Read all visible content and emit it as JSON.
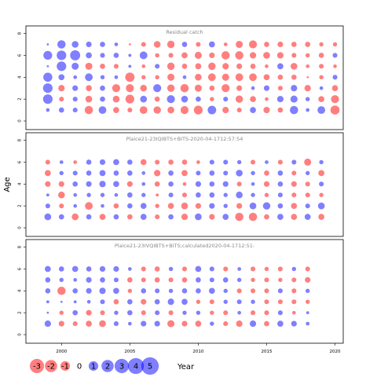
{
  "colors": {
    "negative": "#ff0000",
    "positive": "#0000ff",
    "frame": "#000000",
    "title": "#888888"
  },
  "chart_data": {
    "type": "scatter",
    "ylabel": "Age",
    "xlabel": "",
    "legend_title": "Year",
    "x_ticks": [
      2000,
      2005,
      2010,
      2015,
      2020
    ],
    "y_ticks": [
      0,
      2,
      4,
      6,
      8
    ],
    "xlim": [
      1997.4,
      2020.6
    ],
    "ylim": [
      -0.5,
      8.4
    ],
    "legend": {
      "values": [
        -3,
        -2,
        -1,
        0,
        1,
        2,
        3,
        4,
        5
      ],
      "labels": [
        "-3",
        "-2",
        "-1",
        "0",
        "1",
        "2",
        "3",
        "4",
        "5"
      ]
    },
    "panels": [
      {
        "title": "Residual catch",
        "years_start": 1999,
        "ages": [
          1,
          2,
          3,
          4,
          5,
          6,
          7
        ],
        "residuals": [
          [
            0.3,
            0.6,
            0.5,
            -1.5,
            1.3,
            -0.8,
            -0.5,
            -1.3,
            -1.2,
            -1.0,
            -1.4,
            -1.7,
            1.6,
            -0.9,
            -0.5,
            0.8,
            -0.9,
            -0.6,
            1.5,
            0.3,
            1.3,
            -1.8
          ],
          [
            2.0,
            -0.5,
            0.5,
            -1.0,
            0.6,
            -1.0,
            -1.7,
            1.0,
            -0.6,
            1.4,
            1.0,
            0.6,
            -0.4,
            0.5,
            -1.2,
            -0.8,
            -0.3,
            0.9,
            1.1,
            0.4,
            -0.8,
            -1.4
          ],
          [
            2.0,
            -0.9,
            0.7,
            -0.8,
            0.6,
            -1.4,
            -1.4,
            -1.0,
            1.4,
            -1.2,
            -1.5,
            -1.1,
            -0.6,
            -1.4,
            -0.7,
            0.3,
            0.7,
            -0.5,
            0.9,
            -0.9,
            0.3,
            -0.8
          ],
          [
            1.8,
            0.8,
            0.3,
            1.3,
            0.4,
            0.3,
            -1.9,
            -0.4,
            -0.4,
            -1.1,
            0.3,
            -1.0,
            -1.3,
            -1.1,
            -1.3,
            -1.3,
            -0.8,
            -0.6,
            -0.6,
            -0.1,
            -0.4,
            0.5
          ],
          [
            0.1,
            2.0,
            1.1,
            -1.1,
            -0.6,
            -0.5,
            0.2,
            -0.3,
            0.5,
            -1.2,
            -0.6,
            -0.8,
            -1.2,
            -0.9,
            -0.7,
            -0.6,
            -0.3,
            0.8,
            -1.0,
            -0.3,
            -0.5,
            -0.3
          ],
          [
            1.7,
            2.0,
            2.2,
            0.8,
            0.5,
            0.6,
            0.2,
            1.3,
            -0.4,
            -0.5,
            -0.8,
            -1.1,
            -0.7,
            -1.5,
            -1.5,
            -0.9,
            -1.0,
            -0.9,
            -0.5,
            -0.4,
            -0.6,
            0.5
          ],
          [
            0.1,
            1.5,
            1.0,
            0.7,
            0.6,
            0.3,
            -0.1,
            -0.5,
            -1.0,
            -1.2,
            0.6,
            -0.5,
            0.8,
            -0.3,
            -1.1,
            -1.4,
            -0.6,
            -0.7,
            -0.6,
            -0.6,
            -0.4,
            -0.4
          ]
        ]
      },
      {
        "title": "Plaice21-23IQIBTS+BITS-2020-04-1712:57:54",
        "years_start": 1999,
        "ages": [
          1,
          2,
          3,
          4,
          5,
          6
        ],
        "residuals": [
          [
            1.0,
            0.6,
            -1.0,
            0.6,
            -0.8,
            0.6,
            -0.6,
            0.8,
            -0.5,
            0.6,
            -0.9,
            1.0,
            -0.7,
            0.8,
            -1.5,
            -1.5,
            -0.6,
            0.8,
            -0.8,
            0.8,
            -0.8
          ],
          [
            0.5,
            -0.5,
            0.3,
            -1.3,
            0.3,
            -0.6,
            0.6,
            0.8,
            -0.4,
            -0.8,
            -1.0,
            -0.7,
            0.7,
            0.4,
            -0.7,
            1.0,
            1.2,
            0.6,
            -0.8,
            0.5,
            1.0
          ],
          [
            0.2,
            -1.0,
            0.3,
            0.4,
            0.4,
            0.3,
            0.6,
            0.4,
            -0.2,
            0.5,
            -0.5,
            0.6,
            0.6,
            0.4,
            1.0,
            0.4,
            -0.4,
            0.5,
            -0.5,
            -0.5,
            -0.4
          ],
          [
            -0.7,
            -0.7,
            0.6,
            0.7,
            0.9,
            0.8,
            -0.7,
            0.3,
            -0.6,
            0.6,
            -0.3,
            0.7,
            0.6,
            0.7,
            -0.5,
            0.3,
            -0.7,
            0.6,
            -0.7,
            -0.5,
            0.5
          ],
          [
            -0.8,
            0.4,
            0.5,
            0.6,
            0.8,
            0.6,
            0.6,
            0.3,
            -0.9,
            0.6,
            -0.8,
            0.5,
            0.6,
            0.5,
            1.0,
            0.4,
            -0.6,
            0.6,
            -0.5,
            0.4,
            -0.8
          ],
          [
            -0.5,
            0.3,
            -0.3,
            0.6,
            0.7,
            0.8,
            0.6,
            -0.8,
            -0.5,
            -0.6,
            -0.6,
            -0.3,
            0.5,
            0.5,
            0.4,
            -0.5,
            0.3,
            -0.5,
            0.5,
            -1.1,
            0.4
          ]
        ]
      },
      {
        "title": "Plaice21-23IVQIBTS+BITS;calculated2020-04-1712:51:",
        "years_start": 1999,
        "ages": [
          1,
          2,
          3,
          4,
          5,
          6
        ],
        "residuals": [
          [
            0.9,
            -0.7,
            -0.5,
            -0.8,
            -1.0,
            0.5,
            0.3,
            0.7,
            0.7,
            -1.1,
            -0.7,
            -0.8,
            0.4,
            -0.5,
            -0.9,
            0.9,
            -0.6,
            0.8,
            0.7,
            0.3
          ],
          [
            0.1,
            -0.4,
            0.6,
            -0.7,
            -0.5,
            0.4,
            0.6,
            -0.5,
            0.5,
            -0.5,
            0.4,
            0.4,
            -0.4,
            -0.5,
            0.3,
            -0.5,
            -0.5,
            0.5,
            -0.3,
            0.2
          ],
          [
            0.2,
            0.1,
            0.2,
            0.3,
            0.5,
            -0.6,
            0.6,
            -0.7,
            0.6,
            0.9,
            0.8,
            -0.4,
            -0.5,
            0.4,
            0.5,
            0.4,
            -0.5,
            -0.5,
            -0.5,
            -0.4
          ],
          [
            0.6,
            -1.5,
            0.6,
            0.7,
            0.9,
            0.8,
            -0.4,
            0.6,
            0.5,
            0.4,
            0.6,
            0.6,
            0.8,
            0.4,
            -0.5,
            -0.5,
            -0.5,
            0.5,
            -0.5,
            0.4
          ],
          [
            0.6,
            0.4,
            0.3,
            0.7,
            0.6,
            0.5,
            -0.6,
            -0.5,
            -0.6,
            -0.5,
            -0.6,
            0.6,
            0.5,
            0.6,
            0.4,
            -0.4,
            -0.5,
            -0.4,
            -0.5,
            -0.7
          ],
          [
            0.8,
            0.6,
            0.8,
            0.6,
            0.7,
            0.7,
            0.3,
            -0.5,
            -0.6,
            0.4,
            -0.5,
            0.8,
            0.5,
            -0.5,
            0.3,
            -0.5,
            -0.4,
            -0.5,
            0.4,
            -0.5
          ]
        ]
      }
    ]
  }
}
